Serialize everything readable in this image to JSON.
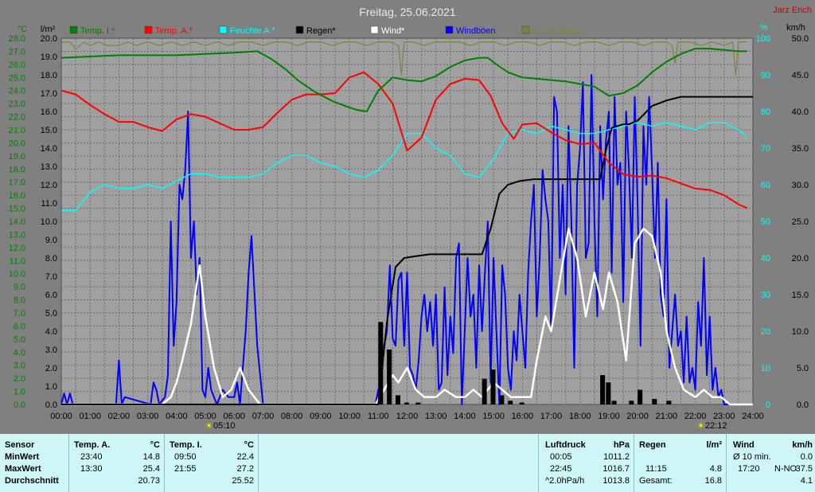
{
  "chart_data": {
    "type": "line",
    "title": "Freitag, 25.06.2021",
    "author": "Jarz Erich",
    "left_axis_1": {
      "label": "°C",
      "color": "#008000",
      "min": 0,
      "max": 28,
      "step": 1,
      "ticks": [
        "0.0",
        "1.0",
        "2.0",
        "3.0",
        "4.0",
        "5.0",
        "6.0",
        "7.0",
        "8.0",
        "9.0",
        "10.0",
        "11.0",
        "12.0",
        "13.0",
        "14.0",
        "15.0",
        "16.0",
        "17.0",
        "18.0",
        "19.0",
        "20.0",
        "21.0",
        "22.0",
        "23.0",
        "24.0",
        "25.0",
        "26.0",
        "27.0",
        "28.0"
      ]
    },
    "left_axis_2": {
      "label": "l/m²",
      "color": "#000000",
      "min": 0,
      "max": 20,
      "step": 1,
      "ticks": [
        "0.0",
        "1.0",
        "2.0",
        "3.0",
        "4.0",
        "5.0",
        "6.0",
        "7.0",
        "8.0",
        "9.0",
        "10.0",
        "11.0",
        "12.0",
        "13.0",
        "14.0",
        "15.0",
        "16.0",
        "17.0",
        "18.0",
        "19.0",
        "20.0"
      ]
    },
    "right_axis_1": {
      "label": "%",
      "color": "#00ffff",
      "min": 0,
      "max": 100,
      "step": 10,
      "ticks": [
        "0",
        "10",
        "20",
        "30",
        "40",
        "50",
        "60",
        "70",
        "80",
        "90",
        "100"
      ]
    },
    "right_axis_2": {
      "label": "km/h",
      "color": "#000000",
      "min": 0,
      "max": 50,
      "step": 5,
      "ticks": [
        "0.0",
        "5.0",
        "10.0",
        "15.0",
        "20.0",
        "25.0",
        "30.0",
        "35.0",
        "40.0",
        "45.0",
        "50.0"
      ]
    },
    "x_ticks": [
      "00:00",
      "01:00",
      "02:00",
      "03:00",
      "04:00",
      "05:00",
      "06:00",
      "07:00",
      "08:00",
      "09:00",
      "10:00",
      "11:00",
      "12:00",
      "13:00",
      "14:00",
      "15:00",
      "16:00",
      "17:00",
      "18:00",
      "19:00",
      "20:00",
      "21:00",
      "22:00",
      "23:00",
      "24:00"
    ],
    "sunrise": "05:10",
    "sunset": "22:12",
    "legend": [
      {
        "name": "Temp. I.*",
        "color": "#008000"
      },
      {
        "name": "Temp. A.*",
        "color": "#ff0000"
      },
      {
        "name": "Feuchte A.*",
        "color": "#00ffff"
      },
      {
        "name": "Regen*",
        "color": "#000000"
      },
      {
        "name": "Wind*",
        "color": "#ffffff"
      },
      {
        "name": "Windböen",
        "color": "#0000ff"
      },
      {
        "name": "Einstrahlung",
        "color": "#808040"
      }
    ],
    "series": [
      {
        "name": "Temp. I.*",
        "unit": "°C",
        "color": "#008000",
        "x": [
          0,
          1,
          2,
          3,
          4,
          5,
          6,
          6.8,
          7.3,
          7.8,
          8.2,
          8.8,
          9.4,
          10,
          10.3,
          10.6,
          11,
          11.5,
          12,
          12.5,
          13,
          13.5,
          14,
          14.5,
          14.8,
          15.1,
          15.5,
          16,
          16.5,
          17,
          17.5,
          18,
          18.5,
          19,
          19.5,
          20,
          20.5,
          21,
          21.5,
          22,
          22.5,
          23,
          23.5,
          23.8
        ],
        "y": [
          26.5,
          26.6,
          26.7,
          26.7,
          26.7,
          26.8,
          26.9,
          27.0,
          26.4,
          25.6,
          24.8,
          23.9,
          23.2,
          22.7,
          22.5,
          22.4,
          24.0,
          25.0,
          24.8,
          24.7,
          25.1,
          25.8,
          26.3,
          26.5,
          26.5,
          26.0,
          25.4,
          25.0,
          24.9,
          24.8,
          24.7,
          24.5,
          24.3,
          23.6,
          23.8,
          24.4,
          25.4,
          26.2,
          26.8,
          27.2,
          27.2,
          27.1,
          27.0,
          27.0
        ]
      },
      {
        "name": "Temp. A.*",
        "unit": "°C",
        "color": "#ff0000",
        "x": [
          0,
          0.5,
          1,
          1.5,
          2,
          2.5,
          3,
          3.5,
          4,
          4.5,
          5,
          5.5,
          6,
          6.5,
          7,
          7.5,
          8,
          8.5,
          9,
          9.5,
          10,
          10.5,
          11,
          11.5,
          12,
          12.5,
          13,
          13.5,
          14,
          14.5,
          14.9,
          15.3,
          15.7,
          16,
          16.5,
          17,
          17.5,
          18,
          18.5,
          19,
          19.5,
          20,
          20.5,
          21,
          21.5,
          22,
          22.5,
          23,
          23.5,
          23.8
        ],
        "y": [
          24.0,
          23.7,
          22.9,
          22.2,
          21.6,
          21.6,
          21.2,
          20.9,
          21.8,
          22.2,
          22.0,
          21.5,
          21.0,
          21.0,
          21.2,
          22.3,
          23.3,
          23.7,
          23.7,
          23.8,
          25.0,
          25.4,
          24.5,
          23.0,
          19.4,
          20.4,
          23.3,
          24.5,
          24.9,
          24.8,
          23.6,
          21.5,
          20.3,
          21.4,
          21.5,
          20.8,
          20.2,
          19.9,
          20.0,
          18.5,
          17.6,
          17.4,
          17.5,
          17.3,
          16.9,
          16.5,
          16.4,
          16.0,
          15.3,
          15.0
        ]
      },
      {
        "name": "Feuchte A.*",
        "unit": "%",
        "color": "#00ffff",
        "x": [
          0,
          0.5,
          1,
          1.5,
          2,
          2.5,
          3,
          3.5,
          4,
          4.5,
          5,
          5.5,
          6,
          6.5,
          7,
          7.5,
          8,
          8.5,
          9,
          9.5,
          10,
          10.5,
          11,
          11.5,
          12,
          12.5,
          13,
          13.5,
          14,
          14.5,
          15,
          15.5,
          16,
          16.5,
          17,
          17.5,
          18,
          18.5,
          19,
          19.5,
          20,
          20.5,
          21,
          21.5,
          22,
          22.5,
          23,
          23.5,
          23.8
        ],
        "y": [
          53,
          53,
          58,
          60,
          59,
          59,
          60,
          59,
          61,
          63,
          63,
          62,
          62,
          62,
          63,
          66,
          68,
          68,
          66,
          65,
          63,
          62,
          64,
          68,
          74,
          74,
          70,
          68,
          63,
          62,
          67,
          74,
          75,
          74,
          76,
          75,
          74,
          74,
          75,
          76,
          77,
          76,
          77,
          76,
          75,
          77,
          77,
          75,
          73
        ]
      },
      {
        "name": "Regen*",
        "unit": "l/m²",
        "color": "#000000",
        "x": [
          0,
          11.0,
          11.3,
          11.6,
          11.9,
          12.3,
          12.8,
          13.3,
          13.8,
          14.3,
          14.6,
          14.9,
          15.2,
          15.5,
          15.9,
          16.4,
          17.0,
          17.5,
          18.0,
          18.5,
          18.7,
          18.9,
          19.1,
          19.5,
          19.7,
          20.0,
          20.5,
          21.0,
          21.5,
          22.0,
          24.0
        ],
        "y": [
          0,
          0,
          4.5,
          7.5,
          8.0,
          8.1,
          8.2,
          8.2,
          8.2,
          8.2,
          8.2,
          9.6,
          11.5,
          12.0,
          12.2,
          12.3,
          12.3,
          12.3,
          12.3,
          12.3,
          12.3,
          13.9,
          15.1,
          15.3,
          15.3,
          15.5,
          16.3,
          16.6,
          16.8,
          16.8,
          16.8
        ]
      },
      {
        "name": "Wind*",
        "unit": "km/h",
        "color": "#ffffff",
        "x": [
          0,
          3.5,
          3.8,
          4.0,
          4.2,
          4.5,
          4.8,
          5.0,
          5.3,
          5.6,
          5.9,
          6.2,
          6.5,
          6.9,
          7.3,
          10.9,
          11.2,
          11.5,
          11.7,
          12.0,
          12.3,
          12.6,
          13.0,
          13.3,
          13.7,
          14.0,
          14.3,
          14.6,
          15.0,
          15.3,
          15.6,
          16.0,
          16.3,
          16.5,
          16.8,
          17.0,
          17.3,
          17.6,
          17.9,
          18.2,
          18.5,
          18.8,
          19.0,
          19.3,
          19.6,
          19.9,
          20.2,
          20.5,
          20.8,
          21.0,
          21.3,
          21.6,
          22.0,
          22.3,
          22.6,
          22.9,
          23.2,
          23.6,
          24.0
        ],
        "y": [
          0,
          0,
          1,
          3,
          6,
          11,
          19,
          12,
          5,
          1,
          2,
          5,
          2,
          0,
          0,
          0,
          2,
          4,
          3,
          5,
          2,
          1,
          1,
          2,
          1,
          1,
          2,
          1,
          3,
          2,
          1,
          1,
          1,
          6,
          12,
          10,
          17,
          24,
          20,
          12,
          18,
          13,
          18,
          14,
          6,
          22,
          24,
          23,
          18,
          10,
          5,
          2,
          1,
          2,
          1,
          1,
          0,
          0,
          0
        ]
      },
      {
        "name": "Windböen",
        "unit": "km/h",
        "color": "#0000ff",
        "x": [
          0,
          0.1,
          0.2,
          0.3,
          0.4,
          1.9,
          2.0,
          2.1,
          2.2,
          3.1,
          3.2,
          3.3,
          3.4,
          3.6,
          3.7,
          3.8,
          3.9,
          4.0,
          4.1,
          4.2,
          4.3,
          4.4,
          4.5,
          4.6,
          4.7,
          4.8,
          4.9,
          5.0,
          5.1,
          5.2,
          5.4,
          5.6,
          5.8,
          6.0,
          6.1,
          6.2,
          6.3,
          6.4,
          6.5,
          6.6,
          6.8,
          7.0,
          10.9,
          11.0,
          11.1,
          11.2,
          11.3,
          11.4,
          11.5,
          11.6,
          11.7,
          11.8,
          11.9,
          12.0,
          12.1,
          12.2,
          12.3,
          12.4,
          12.5,
          12.6,
          12.7,
          12.8,
          12.9,
          13.0,
          13.1,
          13.2,
          13.3,
          13.4,
          13.5,
          13.6,
          13.7,
          13.8,
          13.9,
          14.0,
          14.1,
          14.2,
          14.3,
          14.4,
          14.5,
          14.6,
          14.7,
          14.8,
          14.9,
          15.0,
          15.1,
          15.2,
          15.3,
          15.4,
          15.5,
          15.6,
          15.7,
          15.8,
          15.9,
          16.0,
          16.1,
          16.2,
          16.3,
          16.4,
          16.5,
          16.6,
          16.7,
          16.8,
          16.9,
          17.0,
          17.1,
          17.2,
          17.3,
          17.4,
          17.5,
          17.6,
          17.7,
          17.8,
          17.9,
          18.0,
          18.1,
          18.2,
          18.3,
          18.4,
          18.5,
          18.6,
          18.7,
          18.8,
          18.9,
          19.0,
          19.1,
          19.2,
          19.3,
          19.4,
          19.5,
          19.6,
          19.7,
          19.8,
          19.9,
          20.0,
          20.1,
          20.2,
          20.3,
          20.4,
          20.5,
          20.6,
          20.7,
          20.8,
          20.9,
          21.0,
          21.1,
          21.2,
          21.3,
          21.4,
          21.5,
          21.6,
          21.7,
          21.8,
          21.9,
          22.0,
          22.1,
          22.2,
          22.3,
          22.4,
          22.5,
          22.6,
          22.7,
          22.8,
          22.9,
          23.0,
          23.1,
          24.0
        ],
        "y": [
          0,
          1.5,
          0,
          1.5,
          0,
          0,
          6,
          0,
          1,
          0,
          3,
          2,
          0,
          1,
          4,
          25,
          8,
          14,
          30,
          28,
          32,
          40,
          20,
          25,
          15,
          20,
          2,
          1,
          5,
          2,
          0,
          2,
          1,
          1,
          3,
          0,
          5,
          10,
          18,
          23,
          8,
          0,
          0,
          2,
          3,
          8,
          10,
          19,
          9,
          8,
          17,
          18,
          8,
          18,
          5,
          4,
          2,
          6,
          12,
          15,
          10,
          14,
          8,
          15,
          2,
          3,
          16,
          4,
          12,
          7,
          20,
          22,
          0,
          10,
          20,
          12,
          15,
          5,
          19,
          10,
          18,
          25,
          3,
          20,
          10,
          0,
          19,
          15,
          5,
          2,
          10,
          6,
          15,
          10,
          5,
          18,
          25,
          30,
          12,
          20,
          32,
          28,
          25,
          10,
          42,
          40,
          20,
          30,
          15,
          38,
          25,
          5,
          30,
          35,
          44,
          20,
          22,
          45,
          25,
          12,
          38,
          28,
          36,
          40,
          18,
          42,
          30,
          33,
          14,
          40,
          32,
          20,
          42,
          27,
          8,
          38,
          30,
          42,
          32,
          20,
          33,
          15,
          12,
          28,
          5,
          10,
          15,
          8,
          10,
          3,
          12,
          3,
          5,
          2,
          14,
          8,
          20,
          4,
          12,
          2,
          5,
          1,
          2,
          0,
          0,
          0
        ]
      },
      {
        "name": "Einstrahlung",
        "unit": "",
        "color": "#808040",
        "x": [
          0,
          0.3,
          0.5,
          0.8,
          1,
          1.3,
          1.6,
          2,
          2.3,
          2.6,
          3,
          3.4,
          3.8,
          4.2,
          4.6,
          5,
          5.4,
          5.8,
          6.2,
          6.6,
          7,
          7.4,
          7.8,
          8.2,
          8.6,
          9,
          9.4,
          9.8,
          10.2,
          10.6,
          11,
          11.4,
          11.7,
          11.8,
          11.9,
          12.2,
          12.6,
          13,
          13.4,
          13.8,
          14.2,
          14.6,
          15,
          15.4,
          15.8,
          16.2,
          16.6,
          17,
          17.4,
          17.8,
          18.2,
          18.6,
          19,
          19.4,
          19.8,
          20.2,
          20.6,
          21,
          21.2,
          21.3,
          21.4,
          21.8,
          22.2,
          22.6,
          23,
          23.3,
          23.4,
          23.5,
          23.8
        ],
        "y": [
          99,
          99,
          97,
          99,
          98,
          99,
          98,
          98,
          99,
          98,
          99,
          98,
          99,
          98,
          99,
          98,
          99,
          98,
          99,
          99,
          98,
          99,
          99,
          98,
          99,
          99,
          98,
          99,
          99,
          98,
          99,
          99,
          98,
          90,
          99,
          99,
          98,
          99,
          99,
          99,
          98,
          99,
          99,
          98,
          99,
          99,
          98,
          99,
          99,
          98,
          99,
          99,
          98,
          99,
          99,
          98,
          99,
          99,
          98,
          93,
          99,
          99,
          98,
          99,
          98,
          99,
          90,
          99,
          99
        ]
      }
    ]
  },
  "stats": {
    "sensor_header": "Sensor",
    "row_labels": [
      "MinWert",
      "MaxWert",
      "Durchschnitt"
    ],
    "temp_a": {
      "label": "Temp. A.",
      "unit": "°C",
      "rows": [
        {
          "time": "23:40",
          "value": "14.8"
        },
        {
          "time": "13:30",
          "value": "25.4"
        },
        {
          "time": "",
          "value": "20.73"
        }
      ]
    },
    "temp_i": {
      "label": "Temp. I.",
      "unit": "°C",
      "rows": [
        {
          "time": "09:50",
          "value": "22.4"
        },
        {
          "time": "21:55",
          "value": "27.2"
        },
        {
          "time": "",
          "value": "25.52"
        }
      ]
    },
    "pressure": {
      "label": "Luftdruck",
      "unit": "hPa",
      "rows": [
        {
          "time": "00:05",
          "value": "1011.2"
        },
        {
          "time": "22:45",
          "value": "1016.7"
        },
        {
          "time": "^2.0hPa/h",
          "value": "1013.8"
        }
      ]
    },
    "rain": {
      "label": "Regen",
      "unit": "l/m²",
      "rows": [
        {
          "time": "",
          "value": ""
        },
        {
          "time": "11:15",
          "value": "4.8"
        },
        {
          "time": "Gesamt:",
          "value": "16.8"
        }
      ]
    },
    "wind": {
      "label": "Wind",
      "unit": "km/h",
      "rows": [
        {
          "time": "Ø 10 min.",
          "dir": "",
          "value": "0.0"
        },
        {
          "time": "17:20",
          "dir": "N-NO",
          "value": "37.5"
        },
        {
          "time": "",
          "dir": "",
          "value": "4.1"
        }
      ]
    }
  }
}
